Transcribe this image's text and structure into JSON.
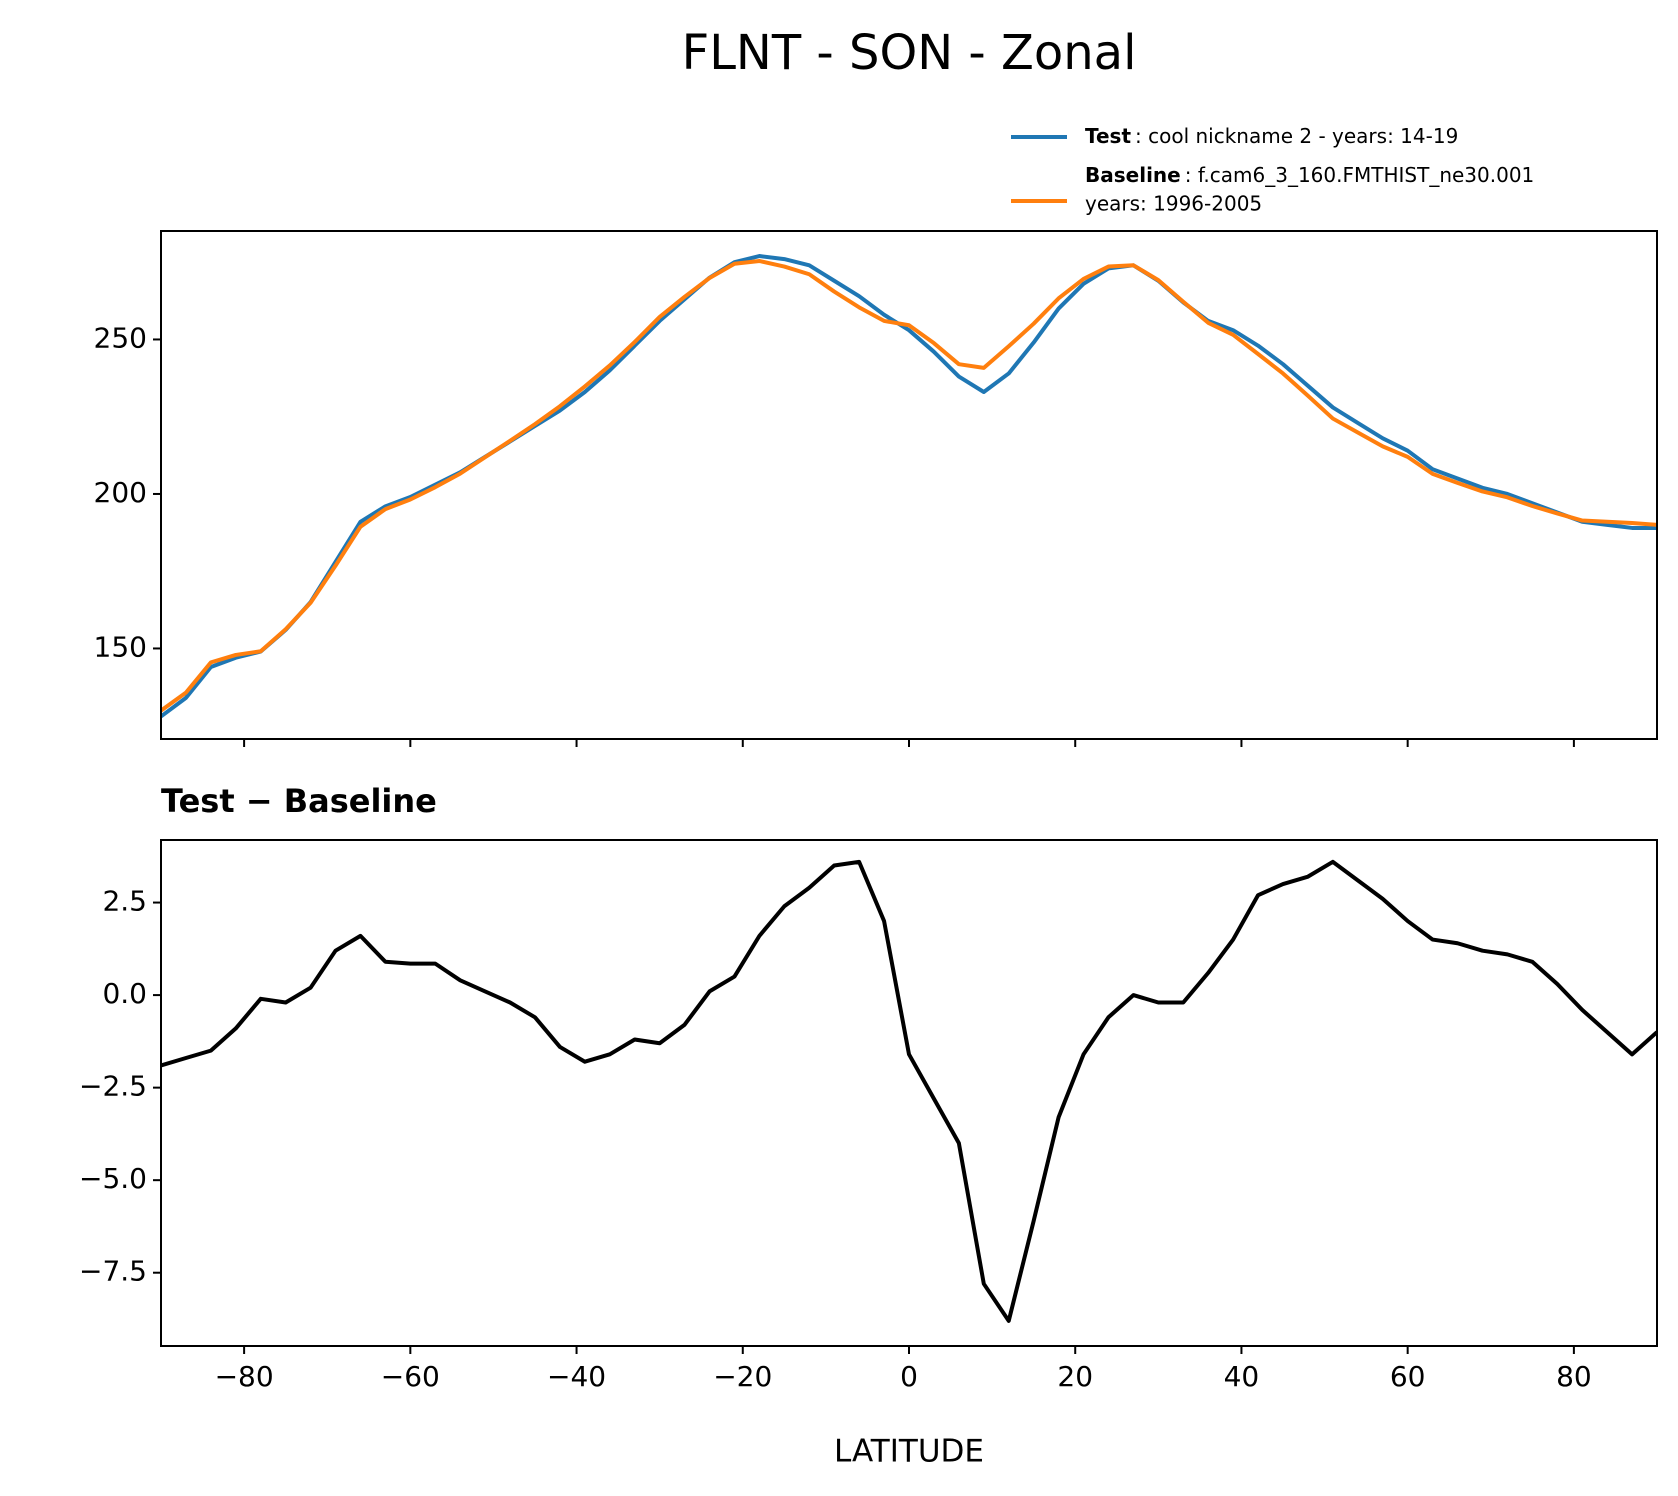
{
  "chart_data": [
    {
      "type": "line",
      "title": "FLNT - SON - Zonal",
      "x": [
        -90,
        -87,
        -84,
        -81,
        -78,
        -75,
        -72,
        -69,
        -66,
        -63,
        -60,
        -57,
        -54,
        -51,
        -48,
        -45,
        -42,
        -39,
        -36,
        -33,
        -30,
        -27,
        -24,
        -21,
        -18,
        -15,
        -12,
        -9,
        -6,
        -3,
        0,
        3,
        6,
        9,
        12,
        15,
        18,
        21,
        24,
        27,
        30,
        33,
        36,
        39,
        42,
        45,
        48,
        51,
        54,
        57,
        60,
        63,
        66,
        69,
        72,
        75,
        78,
        81,
        84,
        87,
        90
      ],
      "series": [
        {
          "name": "Test",
          "description": [
            ": cool nickname 2 - years: 14-19"
          ],
          "color": "#1f77b4",
          "values": [
            128,
            134,
            144,
            147,
            149,
            156,
            165,
            178,
            191,
            196,
            199,
            203,
            207,
            212,
            217,
            222,
            227,
            233,
            240,
            248,
            256,
            263,
            270,
            275,
            277,
            276,
            274,
            269,
            264,
            258,
            253,
            246,
            238,
            233,
            239,
            249,
            260,
            268,
            273,
            274,
            269,
            262,
            256,
            253,
            248,
            242,
            235,
            228,
            223,
            218,
            214,
            208,
            205,
            202,
            200,
            197,
            194,
            191,
            190,
            189,
            189
          ]
        },
        {
          "name": "Baseline",
          "description": [
            ": f.cam6_3_160.FMTHIST_ne30.001",
            "years: 1996-2005"
          ],
          "color": "#ff7f0e",
          "values": [
            129.9,
            135.7,
            145.5,
            147.9,
            149.1,
            156.2,
            164.8,
            176.8,
            189.4,
            195.1,
            198.2,
            202.2,
            206.6,
            211.9,
            217.2,
            222.6,
            228.4,
            234.8,
            241.6,
            249.2,
            257.3,
            263.8,
            269.9,
            274.5,
            275.4,
            273.6,
            271.1,
            265.5,
            260.4,
            256,
            254.6,
            248.8,
            242,
            240.8,
            247.8,
            255.1,
            263.3,
            269.6,
            273.6,
            274,
            269.2,
            262.2,
            255.4,
            251.5,
            245.3,
            239,
            231.8,
            224.4,
            219.9,
            215.4,
            212,
            206.5,
            203.6,
            200.8,
            198.9,
            196.1,
            193.7,
            191.4,
            191,
            190.6,
            190
          ]
        }
      ],
      "xlim": [
        -90,
        90
      ],
      "xticks": [
        {
          "value": -80,
          "label": "−80"
        },
        {
          "value": -60,
          "label": "−60"
        },
        {
          "value": -40,
          "label": "−40"
        },
        {
          "value": -20,
          "label": "−20"
        },
        0,
        20,
        40,
        60,
        80
      ],
      "ylim": [
        120.7,
        285.1
      ],
      "yticks": [
        150,
        200,
        250
      ]
    },
    {
      "type": "line",
      "subtitle": "Test − Baseline",
      "xlabel": "LATITUDE",
      "x": [
        -90,
        -87,
        -84,
        -81,
        -78,
        -75,
        -72,
        -69,
        -66,
        -63,
        -60,
        -57,
        -54,
        -51,
        -48,
        -45,
        -42,
        -39,
        -36,
        -33,
        -30,
        -27,
        -24,
        -21,
        -18,
        -15,
        -12,
        -9,
        -6,
        -3,
        0,
        3,
        6,
        9,
        12,
        15,
        18,
        21,
        24,
        27,
        30,
        33,
        36,
        39,
        42,
        45,
        48,
        51,
        54,
        57,
        60,
        63,
        66,
        69,
        72,
        75,
        78,
        81,
        84,
        87,
        90
      ],
      "series": [
        {
          "color": "#000000",
          "values": [
            -1.9,
            -1.7,
            -1.5,
            -0.9,
            -0.1,
            -0.2,
            0.2,
            1.2,
            1.6,
            0.9,
            0.85,
            0.85,
            0.4,
            0.1,
            -0.2,
            -0.6,
            -1.4,
            -1.8,
            -1.6,
            -1.2,
            -1.3,
            -0.8,
            0.1,
            0.5,
            1.6,
            2.4,
            2.9,
            3.5,
            3.6,
            2.0,
            -1.6,
            -2.8,
            -4.0,
            -7.8,
            -8.8,
            -6.1,
            -3.3,
            -1.6,
            -0.6,
            0.0,
            -0.2,
            -0.2,
            0.6,
            1.5,
            2.7,
            3.0,
            3.2,
            3.6,
            3.1,
            2.6,
            2.0,
            1.5,
            1.4,
            1.2,
            1.1,
            0.9,
            0.3,
            -0.4,
            -1.0,
            -1.6,
            -1.0
          ]
        }
      ],
      "xlim": [
        -90,
        90
      ],
      "xticks": [
        {
          "value": -80,
          "label": "−80"
        },
        {
          "value": -60,
          "label": "−60"
        },
        {
          "value": -40,
          "label": "−40"
        },
        {
          "value": -20,
          "label": "−20"
        },
        0,
        20,
        40,
        60,
        80
      ],
      "ylim": [
        -9.48,
        4.19
      ],
      "yticks": [
        {
          "value": 2.5,
          "label": "2.5"
        },
        {
          "value": 0,
          "label": "0.0"
        },
        {
          "value": -2.5,
          "label": "−2.5"
        },
        {
          "value": -5,
          "label": "−5.0"
        },
        {
          "value": -7.5,
          "label": "−7.5"
        }
      ]
    }
  ]
}
